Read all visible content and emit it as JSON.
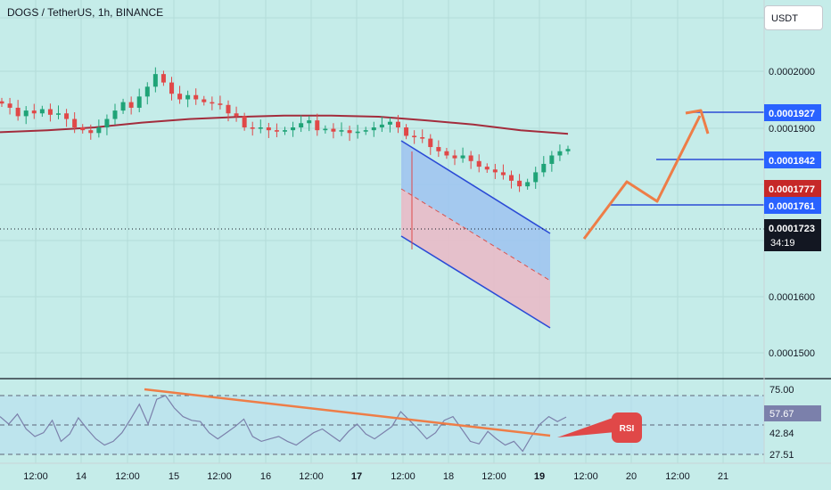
{
  "header": {
    "symbol_title": "DOGS / TetherUS, 1h, BINANCE",
    "currency_button": "USDT"
  },
  "colors": {
    "background": "#c5ece9",
    "candle_up": "#1fa377",
    "candle_down": "#e04848",
    "moving_average": "#a32c3c",
    "channel_line": "#2b4bd6",
    "forecast_arrow": "#ee7d47",
    "rsi_line": "#7b80ab",
    "price_tag_blue": "#2962ff",
    "price_tag_red": "#c62828",
    "price_tag_last": "#131722"
  },
  "price_axis": {
    "ticks": [
      "0.0002000",
      "0.0001900",
      "0.0001600",
      "0.0001500"
    ],
    "tags": {
      "target_1": "0.0001927",
      "target_2": "0.0001842",
      "ma_value": "0.0001777",
      "target_3": "0.0001761",
      "last_price": "0.0001723",
      "countdown": "34:19"
    }
  },
  "rsi_axis": {
    "ticks": [
      "75.00",
      "42.84",
      "27.51"
    ],
    "current": "57.67",
    "annotation": "RSI"
  },
  "time_axis": {
    "ticks": [
      "12:00",
      "14",
      "12:00",
      "15",
      "12:00",
      "16",
      "12:00",
      "17",
      "12:00",
      "18",
      "12:00",
      "19",
      "12:00",
      "20",
      "12:00",
      "21"
    ]
  },
  "chart_data": [
    {
      "type": "candlestick",
      "title": "DOGS / TetherUS, 1h, BINANCE",
      "ylim": [
        0.000147,
        0.000206
      ],
      "y_ticks": [
        0.0002,
        0.00019,
        0.00016,
        0.00015
      ],
      "x_ticks": [
        "12:00",
        "14",
        "12:00",
        "15",
        "12:00",
        "16",
        "12:00",
        "17",
        "12:00",
        "18",
        "12:00",
        "19",
        "12:00",
        "20",
        "12:00",
        "21"
      ],
      "price_path": [
        0.0001885,
        0.000187,
        0.000184,
        0.000186,
        0.000185,
        0.0001865,
        0.0001845,
        0.000185,
        0.000183,
        0.00018,
        0.000179,
        0.000178,
        0.00018,
        0.000183,
        0.000186,
        0.000189,
        0.000187,
        0.000191,
        0.0001945,
        0.000199,
        0.000196,
        0.000192,
        0.00019,
        0.0001915,
        0.00019,
        0.000189,
        0.0001885,
        0.000188,
        0.000185,
        0.000184,
        0.00018,
        0.0001795,
        0.00018,
        0.000179,
        0.0001785,
        0.000179,
        0.00018,
        0.0001815,
        0.0001825,
        0.000179,
        0.0001795,
        0.0001785,
        0.000179,
        0.000178,
        0.0001785,
        0.000179,
        0.00018,
        0.000181,
        0.000182,
        0.00018,
        0.000177,
        0.0001765,
        0.000176,
        0.000173,
        0.0001715,
        0.00017,
        0.000169,
        0.00017,
        0.000168,
        0.000166,
        0.000165,
        0.000164,
        0.000163,
        0.000161,
        0.000159,
        0.0001605,
        0.000164,
        0.000167,
        0.00017,
        0.0001715,
        0.0001723
      ],
      "moving_average": {
        "name": "",
        "values": [
          0.0001783,
          0.000179,
          0.00018,
          0.0001817,
          0.000183,
          0.0001837,
          0.0001842,
          0.0001842,
          0.0001838,
          0.0001825,
          0.000181,
          0.000179,
          0.0001777
        ]
      },
      "price_tags": [
        0.0001927,
        0.0001842,
        0.0001777,
        0.0001761,
        0.0001723
      ],
      "target_levels": [
        0.0001927,
        0.0001842,
        0.0001761
      ]
    },
    {
      "type": "line",
      "title": "RSI",
      "ylim": [
        20,
        80
      ],
      "y_ticks": [
        75.0,
        42.84,
        27.51
      ],
      "values": [
        58,
        52,
        60,
        48,
        42,
        45,
        55,
        38,
        44,
        57,
        48,
        40,
        35,
        38,
        45,
        56,
        68,
        52,
        72,
        75,
        65,
        58,
        55,
        54,
        45,
        40,
        45,
        50,
        56,
        42,
        38,
        40,
        42,
        38,
        35,
        40,
        45,
        48,
        43,
        38,
        46,
        52,
        44,
        40,
        45,
        50,
        62,
        55,
        48,
        40,
        45,
        55,
        58,
        48,
        38,
        36,
        46,
        40,
        35,
        38,
        30,
        42,
        52,
        58,
        54,
        57.67
      ],
      "current": 57.67
    }
  ]
}
